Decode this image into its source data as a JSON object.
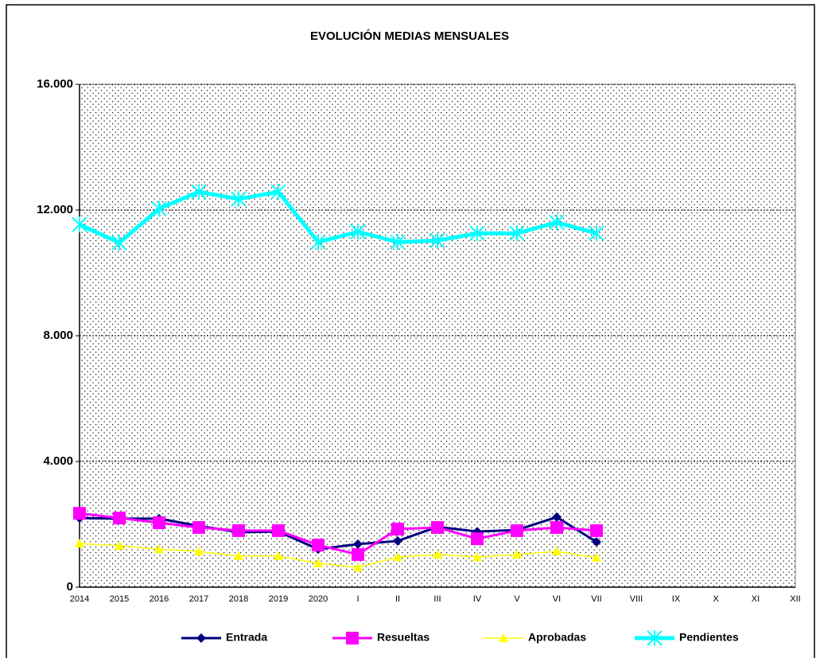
{
  "chart_data": {
    "type": "line",
    "title": "EVOLUCIÓN MEDIAS MENSUALES",
    "categories": [
      "2014",
      "2015",
      "2016",
      "2017",
      "2018",
      "2019",
      "2020",
      "I",
      "II",
      "III",
      "IV",
      "V",
      "VI",
      "VII",
      "VIII",
      "IX",
      "X",
      "XI",
      "XII"
    ],
    "series": [
      {
        "name": "Entrada",
        "color": "#000080",
        "marker": "diamond",
        "values": [
          2200,
          2180,
          2180,
          1950,
          1750,
          1770,
          1210,
          1370,
          1470,
          1920,
          1770,
          1820,
          2230,
          1440,
          null,
          null,
          null,
          null,
          null
        ]
      },
      {
        "name": "Resueltas",
        "color": "#ff00ff",
        "marker": "square",
        "values": [
          2350,
          2200,
          2050,
          1900,
          1800,
          1800,
          1340,
          1040,
          1850,
          1900,
          1540,
          1800,
          1900,
          1800,
          null,
          null,
          null,
          null,
          null
        ]
      },
      {
        "name": "Aprobadas",
        "color": "#ffff00",
        "marker": "triangle",
        "values": [
          1390,
          1320,
          1210,
          1140,
          990,
          990,
          760,
          630,
          960,
          1040,
          960,
          1040,
          1140,
          940,
          null,
          null,
          null,
          null,
          null
        ]
      },
      {
        "name": "Pendientes",
        "color": "#00ffff",
        "marker": "star",
        "values": [
          11540,
          10960,
          12040,
          12580,
          12350,
          12580,
          10980,
          11310,
          10980,
          11030,
          11260,
          11260,
          11610,
          11260,
          null,
          null,
          null,
          null,
          null
        ]
      }
    ],
    "ylim": [
      0,
      16000
    ],
    "yticks": [
      0,
      {
        "value": 4000,
        "label": "4.000"
      },
      {
        "value": 8000,
        "label": "8.000"
      },
      {
        "value": 12000,
        "label": "12.000"
      },
      {
        "value": 16000,
        "label": "16.000"
      }
    ],
    "grid": true,
    "legend": "bottom"
  }
}
